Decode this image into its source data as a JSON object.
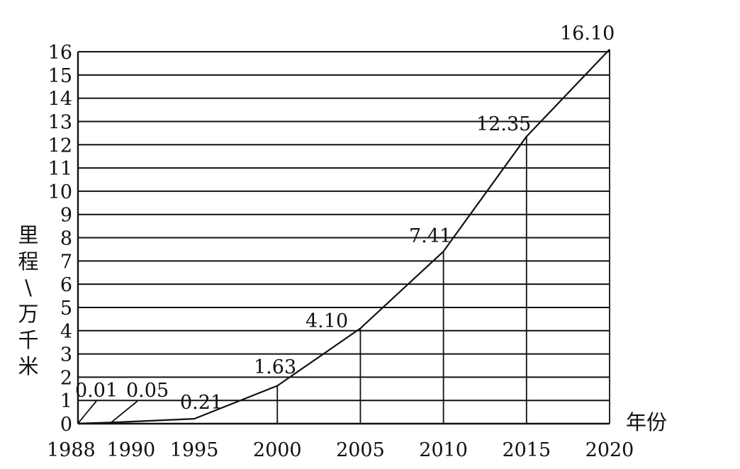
{
  "chart_data": {
    "type": "line",
    "title": "",
    "xlabel": "年份",
    "ylabel": "里程\\万千米",
    "ylim": [
      0,
      16
    ],
    "yticks": [
      "0",
      "1",
      "2",
      "3",
      "4",
      "5",
      "6",
      "7",
      "8",
      "9",
      "10",
      "11",
      "12",
      "13",
      "14",
      "15",
      "16"
    ],
    "grid": "horizontal",
    "points": [
      {
        "x": 1988,
        "y": 0.01,
        "label": "0.01"
      },
      {
        "x": 1990,
        "y": 0.05,
        "label": "0.05"
      },
      {
        "x": 1995,
        "y": 0.21,
        "label": "0.21"
      },
      {
        "x": 2000,
        "y": 1.63,
        "label": "1.63"
      },
      {
        "x": 2005,
        "y": 4.1,
        "label": "4.10"
      },
      {
        "x": 2010,
        "y": 7.41,
        "label": "7.41"
      },
      {
        "x": 2015,
        "y": 12.35,
        "label": "12.35"
      },
      {
        "x": 2020,
        "y": 16.1,
        "label": "16.10"
      }
    ],
    "xticks": [
      "1988",
      "1990",
      "1995",
      "2000",
      "2005",
      "2010",
      "2015",
      "2020"
    ]
  }
}
